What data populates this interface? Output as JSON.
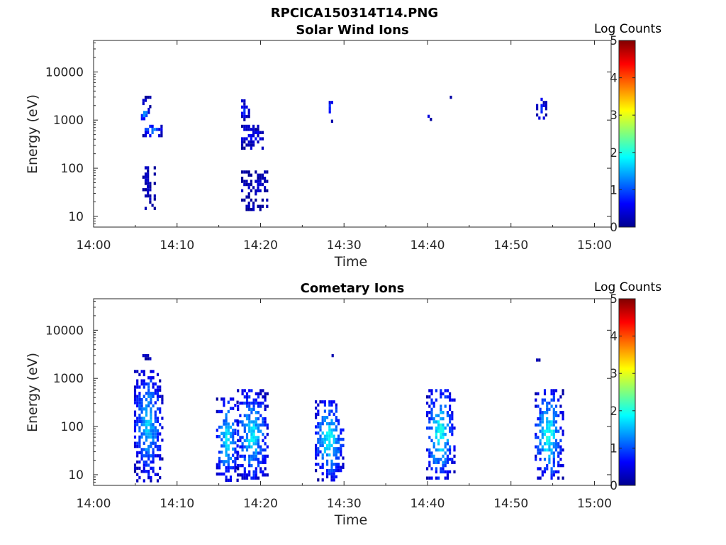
{
  "figure_title": "RPCICA150314T14.PNG",
  "chart_data": [
    {
      "type": "heatmap",
      "title": "Solar Wind Ions",
      "xlabel": "Time",
      "ylabel": "Energy (eV)",
      "xticks": [
        "14:00",
        "14:10",
        "14:20",
        "14:30",
        "14:40",
        "14:50",
        "15:00"
      ],
      "xlim": [
        "14:00",
        "15:02"
      ],
      "yscale": "log",
      "yticks": [
        "10",
        "100",
        "1000",
        "10000"
      ],
      "ylim": [
        6,
        45000
      ],
      "colorbar": {
        "label": "Log Counts",
        "ticks": [
          "0",
          "1",
          "2",
          "3",
          "4",
          "5"
        ],
        "range": [
          0,
          5
        ],
        "colormap": "jet"
      },
      "blobs": [
        {
          "t_start": "14:05:50",
          "t_end": "14:06:40",
          "e_min": 2000,
          "e_max": 3200,
          "value": 0.3
        },
        {
          "t_start": "14:05:40",
          "t_end": "14:06:40",
          "e_min": 1000,
          "e_max": 1800,
          "value": 1.3
        },
        {
          "t_start": "14:05:50",
          "t_end": "14:08:10",
          "e_min": 450,
          "e_max": 800,
          "value": 1.1
        },
        {
          "t_start": "14:05:50",
          "t_end": "14:07:20",
          "e_min": 15,
          "e_max": 110,
          "value": 0.2
        },
        {
          "t_start": "14:17:40",
          "t_end": "14:18:30",
          "e_min": 1000,
          "e_max": 2700,
          "value": 0.6
        },
        {
          "t_start": "14:17:40",
          "t_end": "14:20:20",
          "e_min": 250,
          "e_max": 800,
          "value": 0.5
        },
        {
          "t_start": "14:17:40",
          "t_end": "14:20:50",
          "e_min": 15,
          "e_max": 90,
          "value": 0.2
        },
        {
          "t_start": "14:28:10",
          "t_end": "14:28:40",
          "e_min": 1000,
          "e_max": 2900,
          "value": 0.9
        },
        {
          "t_start": "14:40:00",
          "t_end": "14:40:20",
          "e_min": 1000,
          "e_max": 1500,
          "value": 0.5
        },
        {
          "t_start": "14:42:40",
          "t_end": "14:42:50",
          "e_min": 2900,
          "e_max": 3200,
          "value": 0.3
        },
        {
          "t_start": "14:53:00",
          "t_end": "14:54:10",
          "e_min": 1000,
          "e_max": 2900,
          "value": 0.7
        }
      ]
    },
    {
      "type": "heatmap",
      "title": "Cometary Ions",
      "xlabel": "Time",
      "ylabel": "Energy (eV)",
      "xticks": [
        "14:00",
        "14:10",
        "14:20",
        "14:30",
        "14:40",
        "14:50",
        "15:00"
      ],
      "xlim": [
        "14:00",
        "15:02"
      ],
      "yscale": "log",
      "yticks": [
        "10",
        "100",
        "1000",
        "10000"
      ],
      "ylim": [
        6,
        45000
      ],
      "colorbar": {
        "label": "Log Counts",
        "ticks": [
          "0",
          "1",
          "2",
          "3",
          "4",
          "5"
        ],
        "range": [
          0,
          5
        ],
        "colormap": "jet"
      },
      "blobs": [
        {
          "t_start": "14:05:50",
          "t_end": "14:06:40",
          "e_min": 2400,
          "e_max": 3200,
          "value": 0.3
        },
        {
          "t_start": "14:04:50",
          "t_end": "14:08:10",
          "e_min": 8,
          "e_max": 1500,
          "value": 1.4
        },
        {
          "t_start": "14:14:40",
          "t_end": "14:17:20",
          "e_min": 8,
          "e_max": 400,
          "value": 1.5
        },
        {
          "t_start": "14:17:10",
          "t_end": "14:20:50",
          "e_min": 8,
          "e_max": 600,
          "value": 1.5
        },
        {
          "t_start": "14:28:30",
          "t_end": "14:28:50",
          "e_min": 2700,
          "e_max": 3200,
          "value": 0.3
        },
        {
          "t_start": "14:26:30",
          "t_end": "14:30:00",
          "e_min": 8,
          "e_max": 350,
          "value": 1.6
        },
        {
          "t_start": "14:39:50",
          "t_end": "14:43:10",
          "e_min": 8,
          "e_max": 600,
          "value": 1.7
        },
        {
          "t_start": "14:53:00",
          "t_end": "14:53:20",
          "e_min": 2500,
          "e_max": 3000,
          "value": 0.3
        },
        {
          "t_start": "14:52:50",
          "t_end": "14:56:10",
          "e_min": 8,
          "e_max": 600,
          "value": 1.7
        }
      ]
    }
  ]
}
